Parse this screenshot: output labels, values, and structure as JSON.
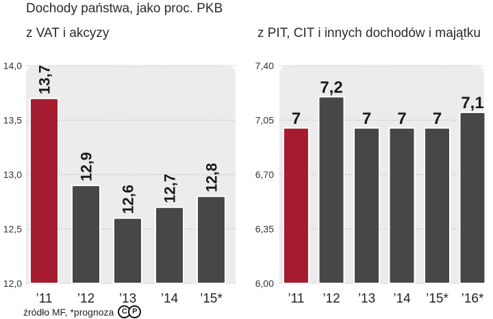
{
  "title": "Dochody państwa, jako proc. PKB",
  "source": "źródło MF, *prognoza",
  "copyright": {
    "letters": [
      "C",
      "P"
    ]
  },
  "colors": {
    "highlight": "#a51c30",
    "bar": "#474747",
    "panel": "#ececec"
  },
  "chart_data": [
    {
      "type": "bar",
      "title": "z VAT i akcyzy",
      "categories": [
        "’11",
        "’12",
        "’13",
        "’14",
        "’15*"
      ],
      "values": [
        13.7,
        12.9,
        12.6,
        12.7,
        12.8
      ],
      "value_labels": [
        "13,7",
        "12,9",
        "12,6",
        "12,7",
        "12,8"
      ],
      "ylim": [
        12.0,
        14.0
      ],
      "yticks": [
        12.0,
        12.5,
        13.0,
        13.5,
        14.0
      ],
      "ytick_labels": [
        "12,0",
        "12,5",
        "13,0",
        "13,5",
        "14,0"
      ],
      "highlight_index": 0,
      "label_rotation": "vertical",
      "grid": true
    },
    {
      "type": "bar",
      "title": "z PIT, CIT i innych dochodów i majątku",
      "categories": [
        "’11",
        "’12",
        "’13",
        "’14",
        "’15*",
        "’16*"
      ],
      "values": [
        7.0,
        7.2,
        7.0,
        7.0,
        7.0,
        7.1
      ],
      "value_labels": [
        "7",
        "7,2",
        "7",
        "7",
        "7",
        "7,1"
      ],
      "ylim": [
        6.0,
        7.4
      ],
      "yticks": [
        6.0,
        6.35,
        6.7,
        7.05,
        7.4
      ],
      "ytick_labels": [
        "6,00",
        "6,35",
        "6,70",
        "7,05",
        "7,40"
      ],
      "highlight_index": 0,
      "label_rotation": "horizontal",
      "grid": true
    }
  ]
}
